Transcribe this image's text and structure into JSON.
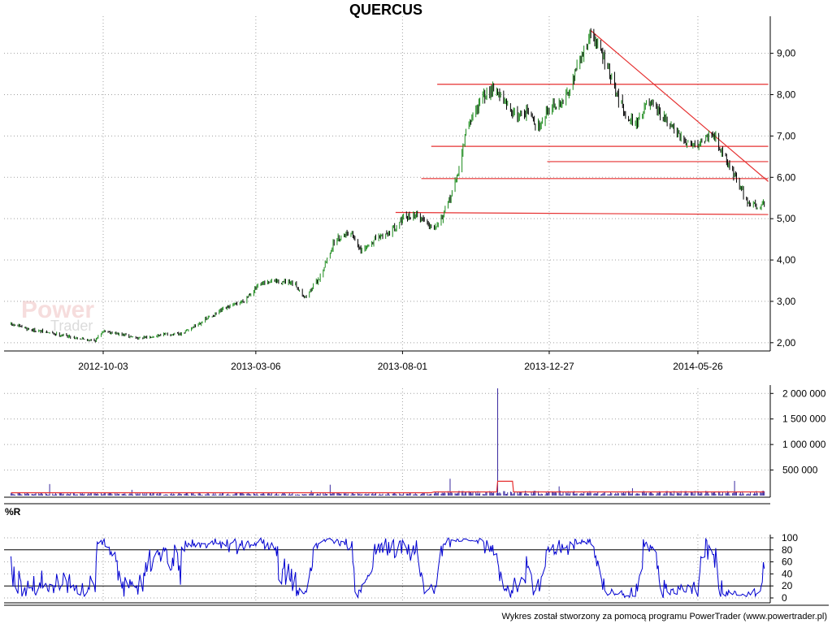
{
  "title": "QUERCUS",
  "footer": "Wykres został stworzony za pomocą programu PowerTrader (www.powertrader.pl)",
  "watermark": {
    "line1": "Power",
    "line2": "Trader"
  },
  "colors": {
    "bull_candle": "#1a8a1a",
    "bear_candle": "#000000",
    "trendline": "#e63030",
    "volume_bars": "#3a2aa0",
    "volume_avg": "#e63030",
    "williams_r": "#0000d0",
    "grid": "#a0a0a0"
  },
  "chart_data": [
    {
      "type": "candlestick",
      "title": "QUERCUS",
      "x_tick_labels": [
        "2012-10-03",
        "2013-03-06",
        "2013-08-01",
        "2013-12-27",
        "2014-05-26"
      ],
      "y_tick_labels": [
        "2,00",
        "3,00",
        "4,00",
        "5,00",
        "6,00",
        "7,00",
        "8,00",
        "9,00"
      ],
      "ylim": [
        1.8,
        9.7
      ],
      "grid": true,
      "close_path": [
        [
          "2012-07-01",
          2.45
        ],
        [
          "2012-07-25",
          2.3
        ],
        [
          "2012-08-20",
          2.2
        ],
        [
          "2012-09-10",
          2.1
        ],
        [
          "2012-09-25",
          2.05
        ],
        [
          "2012-10-03",
          2.3
        ],
        [
          "2012-10-20",
          2.2
        ],
        [
          "2012-11-10",
          2.1
        ],
        [
          "2012-12-01",
          2.2
        ],
        [
          "2012-12-20",
          2.2
        ],
        [
          "2013-01-10",
          2.5
        ],
        [
          "2013-02-01",
          2.8
        ],
        [
          "2013-02-20",
          3.0
        ],
        [
          "2013-03-10",
          3.4
        ],
        [
          "2013-03-25",
          3.5
        ],
        [
          "2013-04-15",
          3.4
        ],
        [
          "2013-04-25",
          3.1
        ],
        [
          "2013-05-10",
          3.6
        ],
        [
          "2013-05-25",
          4.5
        ],
        [
          "2013-06-10",
          4.7
        ],
        [
          "2013-06-20",
          4.2
        ],
        [
          "2013-07-05",
          4.5
        ],
        [
          "2013-07-20",
          4.7
        ],
        [
          "2013-08-01",
          5.0
        ],
        [
          "2013-08-15",
          5.1
        ],
        [
          "2013-09-01",
          4.8
        ],
        [
          "2013-09-12",
          5.1
        ],
        [
          "2013-09-25",
          6.0
        ],
        [
          "2013-10-05",
          7.2
        ],
        [
          "2013-10-20",
          7.9
        ],
        [
          "2013-11-01",
          8.2
        ],
        [
          "2013-11-15",
          7.7
        ],
        [
          "2013-11-25",
          7.5
        ],
        [
          "2013-12-05",
          7.6
        ],
        [
          "2013-12-15",
          7.2
        ],
        [
          "2013-12-27",
          7.7
        ],
        [
          "2014-01-10",
          7.8
        ],
        [
          "2014-01-20",
          8.4
        ],
        [
          "2014-02-01",
          9.1
        ],
        [
          "2014-02-07",
          9.5
        ],
        [
          "2014-02-20",
          8.9
        ],
        [
          "2014-03-05",
          8.0
        ],
        [
          "2014-03-15",
          7.5
        ],
        [
          "2014-03-25",
          7.3
        ],
        [
          "2014-04-05",
          7.8
        ],
        [
          "2014-04-15",
          7.6
        ],
        [
          "2014-04-30",
          7.2
        ],
        [
          "2014-05-10",
          6.9
        ],
        [
          "2014-05-26",
          6.8
        ],
        [
          "2014-06-10",
          7.1
        ],
        [
          "2014-06-20",
          6.6
        ],
        [
          "2014-07-05",
          5.9
        ],
        [
          "2014-07-15",
          5.4
        ],
        [
          "2014-07-25",
          5.3
        ],
        [
          "2014-08-01",
          5.4
        ]
      ],
      "trendlines": [
        {
          "from": [
            "2014-02-07",
            9.55
          ],
          "to": [
            "2014-08-05",
            5.9
          ]
        },
        {
          "from": [
            "2013-09-05",
            8.25
          ],
          "to": [
            "2014-08-05",
            8.25
          ]
        },
        {
          "from": [
            "2013-08-30",
            6.75
          ],
          "to": [
            "2014-08-05",
            6.75
          ]
        },
        {
          "from": [
            "2013-12-25",
            6.38
          ],
          "to": [
            "2014-08-05",
            6.38
          ]
        },
        {
          "from": [
            "2013-08-20",
            5.97
          ],
          "to": [
            "2014-08-05",
            5.97
          ]
        },
        {
          "from": [
            "2013-07-25",
            5.15
          ],
          "to": [
            "2014-08-05",
            5.1
          ]
        }
      ]
    },
    {
      "type": "bar",
      "title": "",
      "y_tick_labels": [
        "500 000",
        "1 000 000",
        "1 500 000",
        "2 000 000"
      ],
      "ylim": [
        0,
        2100000
      ],
      "grid": true,
      "typical_volume": 40000,
      "spike": {
        "x": "2013-11-05",
        "value": 2100000
      },
      "average_line": {
        "baseline": 55000,
        "bump_from": "2013-11-05",
        "bump_to": "2013-11-20",
        "bump_value": 280000
      }
    },
    {
      "type": "line",
      "title": "%R",
      "y_tick_labels": [
        "0",
        "20",
        "40",
        "60",
        "80",
        "100"
      ],
      "ylim": [
        0,
        100
      ],
      "reference_lines": [
        20,
        80
      ],
      "grid": true
    }
  ]
}
